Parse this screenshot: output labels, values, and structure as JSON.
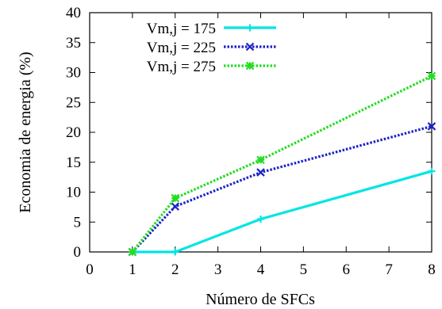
{
  "chart_data": {
    "type": "line",
    "title": "",
    "xlabel": "Número de SFCs",
    "ylabel": "Economia de energia (%)",
    "xlim": [
      0,
      8
    ],
    "ylim": [
      0,
      40
    ],
    "xticks": [
      0,
      1,
      2,
      3,
      4,
      5,
      6,
      7,
      8
    ],
    "yticks": [
      0,
      5,
      10,
      15,
      20,
      25,
      30,
      35,
      40
    ],
    "x_tick_labels": [
      "0",
      "1",
      "2",
      "3",
      "4",
      "5",
      "6",
      "7",
      "8"
    ],
    "y_tick_labels": [
      "0",
      "5",
      "10",
      "15",
      "20",
      "25",
      "30",
      "35",
      "40"
    ],
    "grid": false,
    "legend_position": "top-left",
    "x": [
      1,
      2,
      4,
      8
    ],
    "series": [
      {
        "name": "Vm,j = 175",
        "values": [
          0,
          0,
          5.5,
          13.5
        ],
        "color": "#00e5e5",
        "marker": "plus",
        "line_style": "solid"
      },
      {
        "name": "Vm,j = 225",
        "values": [
          0,
          7.6,
          13.3,
          21.0
        ],
        "color": "#1c24c8",
        "marker": "cross",
        "line_style": "dotted"
      },
      {
        "name": "Vm,j = 275",
        "values": [
          0,
          9.0,
          15.4,
          29.4
        ],
        "color": "#22dd22",
        "marker": "star",
        "line_style": "dotted"
      }
    ]
  }
}
